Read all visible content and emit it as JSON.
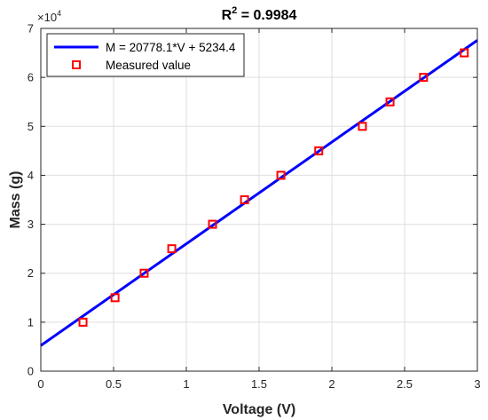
{
  "chart_data": {
    "type": "scatter",
    "title_prefix": "R",
    "title_exponent": "2",
    "title_suffix": " = 0.9984",
    "xlabel": "Voltage (V)",
    "ylabel": "Mass (g)",
    "xlim": [
      0,
      3
    ],
    "ylim": [
      0,
      70000
    ],
    "x_ticks": [
      0,
      0.5,
      1,
      1.5,
      2,
      2.5,
      3
    ],
    "x_tick_labels": [
      "0",
      "0.5",
      "1",
      "1.5",
      "2",
      "2.5",
      "3"
    ],
    "y_ticks": [
      0,
      10000,
      20000,
      30000,
      40000,
      50000,
      60000,
      70000
    ],
    "y_tick_labels": [
      "0",
      "1",
      "2",
      "3",
      "4",
      "5",
      "6",
      "7"
    ],
    "y_multiplier_base": "×10",
    "y_multiplier_exponent": "4",
    "grid": true,
    "legend_position": "top-left",
    "series": [
      {
        "name": "M = 20778.1*V + 5234.4",
        "kind": "line",
        "color": "#0000ff",
        "slope": 20778.1,
        "intercept": 5234.4
      },
      {
        "name": "Measured value",
        "kind": "marker",
        "marker": "square",
        "color": "#ff0000",
        "points": [
          {
            "x": 0.29,
            "y": 10000
          },
          {
            "x": 0.51,
            "y": 15000
          },
          {
            "x": 0.71,
            "y": 20000
          },
          {
            "x": 0.9,
            "y": 25000
          },
          {
            "x": 1.18,
            "y": 30000
          },
          {
            "x": 1.4,
            "y": 35000
          },
          {
            "x": 1.65,
            "y": 40000
          },
          {
            "x": 1.91,
            "y": 45000
          },
          {
            "x": 2.21,
            "y": 50000
          },
          {
            "x": 2.4,
            "y": 55000
          },
          {
            "x": 2.63,
            "y": 60000
          },
          {
            "x": 2.91,
            "y": 65000
          }
        ]
      }
    ]
  }
}
